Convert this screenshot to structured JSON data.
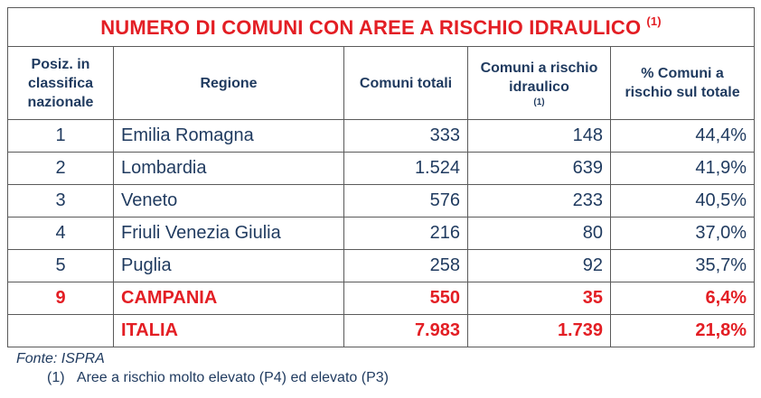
{
  "title": "NUMERO DI COMUNI CON AREE A RISCHIO IDRAULICO",
  "title_note": "(1)",
  "headers": {
    "pos": "Posiz. in classifica nazionale",
    "region": "Regione",
    "total": "Comuni totali",
    "risk": "Comuni a rischio idraulico",
    "risk_note": "(1)",
    "pct": "% Comuni a rischio sul totale"
  },
  "colors": {
    "accent": "#e31e24",
    "text": "#1f3a5f",
    "border": "#5a5a5a"
  },
  "chart_data": {
    "type": "table",
    "columns": [
      "Posiz. in classifica nazionale",
      "Regione",
      "Comuni totali",
      "Comuni a rischio idraulico",
      "% Comuni a rischio sul totale"
    ],
    "rows": [
      {
        "pos": "1",
        "region": "Emilia Romagna",
        "total": "333",
        "risk": "148",
        "pct": "44,4%",
        "highlight": false
      },
      {
        "pos": "2",
        "region": "Lombardia",
        "total": "1.524",
        "risk": "639",
        "pct": "41,9%",
        "highlight": false
      },
      {
        "pos": "3",
        "region": "Veneto",
        "total": "576",
        "risk": "233",
        "pct": "40,5%",
        "highlight": false
      },
      {
        "pos": "4",
        "region": "Friuli Venezia Giulia",
        "total": "216",
        "risk": "80",
        "pct": "37,0%",
        "highlight": false
      },
      {
        "pos": "5",
        "region": "Puglia",
        "total": "258",
        "risk": "92",
        "pct": "35,7%",
        "highlight": false
      },
      {
        "pos": "9",
        "region": "CAMPANIA",
        "total": "550",
        "risk": "35",
        "pct": "6,4%",
        "highlight": true
      },
      {
        "pos": "",
        "region": "ITALIA",
        "total": "7.983",
        "risk": "1.739",
        "pct": "21,8%",
        "highlight": true
      }
    ]
  },
  "footer": {
    "source": "Fonte: ISPRA",
    "note_marker": "(1)",
    "note_text": "Aree a rischio molto elevato (P4) ed elevato (P3)"
  }
}
